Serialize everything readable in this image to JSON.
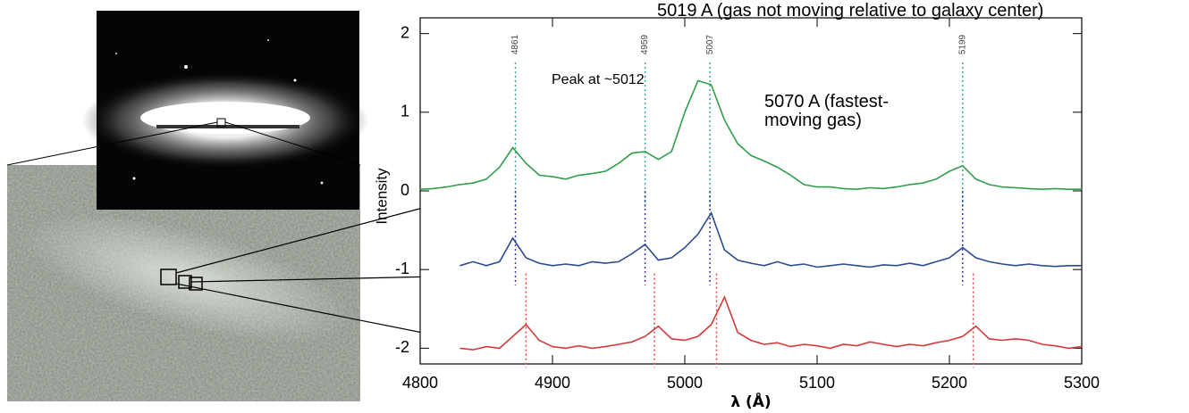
{
  "chart_data": {
    "type": "line",
    "xlabel": "λ (Å)",
    "ylabel": "Intensity",
    "xlim": [
      4800,
      5300
    ],
    "ylim": [
      -2.2,
      2.2
    ],
    "xticks": [
      4800,
      4900,
      5000,
      5100,
      5200,
      5300
    ],
    "yticks": [
      -2,
      -1,
      0,
      1,
      2
    ],
    "rest_wavelengths": [
      4861,
      4959,
      5007,
      5199
    ],
    "annotations": [
      "5019 A (gas not moving relative to galaxy center)",
      "Peak at ~5012",
      "5070 A (fastest-moving gas)"
    ],
    "x": [
      4800,
      4810,
      4820,
      4830,
      4840,
      4850,
      4860,
      4870,
      4880,
      4890,
      4900,
      4910,
      4920,
      4930,
      4940,
      4950,
      4960,
      4970,
      4980,
      4990,
      5000,
      5010,
      5020,
      5030,
      5040,
      5050,
      5060,
      5070,
      5080,
      5090,
      5100,
      5110,
      5120,
      5130,
      5140,
      5150,
      5160,
      5170,
      5180,
      5190,
      5200,
      5210,
      5220,
      5230,
      5240,
      5250,
      5260,
      5270,
      5280,
      5290,
      5300
    ],
    "series": [
      {
        "color": "#2e9e4a",
        "ref_color": "#3aa9a0",
        "ref_lines": [
          4872,
          4970,
          5019,
          5210
        ],
        "values": [
          0.02,
          0.03,
          0.05,
          0.08,
          0.1,
          0.15,
          0.3,
          0.55,
          0.35,
          0.2,
          0.18,
          0.15,
          0.2,
          0.22,
          0.25,
          0.35,
          0.48,
          0.5,
          0.4,
          0.5,
          1.0,
          1.4,
          1.35,
          0.9,
          0.6,
          0.45,
          0.38,
          0.3,
          0.2,
          0.08,
          0.05,
          0.05,
          0.03,
          0.02,
          0.04,
          0.03,
          0.05,
          0.08,
          0.1,
          0.15,
          0.25,
          0.32,
          0.15,
          0.08,
          0.05,
          0.04,
          0.03,
          0.02,
          0.03,
          0.02,
          0.02
        ]
      },
      {
        "color": "#2c4a8e",
        "ref_color": "#3a3aa8",
        "ref_lines": [
          4872,
          4970,
          5019,
          5210
        ],
        "values": [
          null,
          null,
          null,
          -0.95,
          -0.9,
          -0.95,
          -0.9,
          -0.6,
          -0.85,
          -0.92,
          -0.95,
          -0.93,
          -0.95,
          -0.9,
          -0.92,
          -0.9,
          -0.8,
          -0.68,
          -0.88,
          -0.85,
          -0.72,
          -0.55,
          -0.28,
          -0.75,
          -0.88,
          -0.92,
          -0.95,
          -0.9,
          -0.95,
          -0.93,
          -0.97,
          -0.95,
          -0.93,
          -0.95,
          -0.97,
          -0.94,
          -0.95,
          -0.92,
          -0.95,
          -0.9,
          -0.85,
          -0.72,
          -0.85,
          -0.9,
          -0.93,
          -0.95,
          -0.93,
          -0.95,
          -0.96,
          -0.95,
          -0.95
        ]
      },
      {
        "color": "#d33a3a",
        "ref_color": "#e84444",
        "ref_lines": [
          4880,
          4977,
          5024,
          5218
        ],
        "values": [
          null,
          null,
          null,
          -2.0,
          -2.02,
          -1.98,
          -2.0,
          -1.85,
          -1.7,
          -1.9,
          -1.98,
          -2.0,
          -1.97,
          -2.0,
          -1.98,
          -1.95,
          -1.92,
          -1.85,
          -1.72,
          -1.88,
          -1.9,
          -1.85,
          -1.7,
          -1.35,
          -1.8,
          -1.9,
          -1.95,
          -1.93,
          -1.98,
          -1.95,
          -1.97,
          -2.0,
          -1.95,
          -1.97,
          -1.92,
          -1.95,
          -1.98,
          -1.95,
          -1.97,
          -1.93,
          -1.9,
          -1.85,
          -1.72,
          -1.88,
          -1.9,
          -1.88,
          -1.9,
          -1.95,
          -1.97,
          -2.0,
          -1.98
        ]
      }
    ]
  }
}
